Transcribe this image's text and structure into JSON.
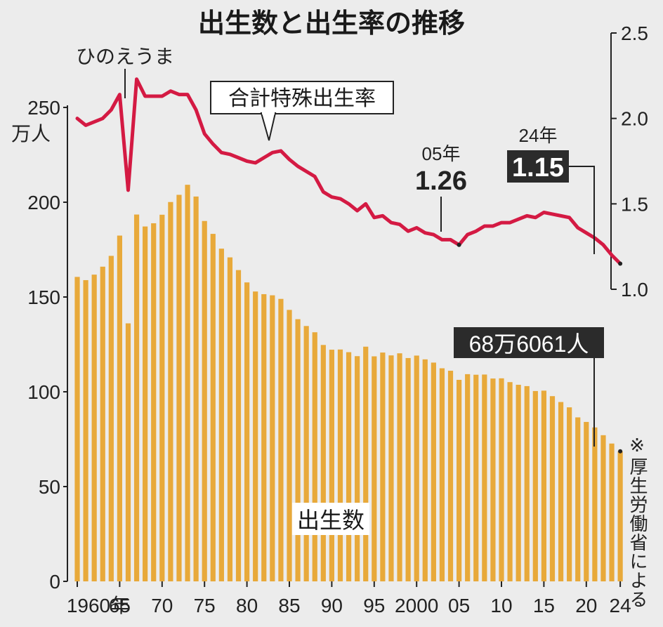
{
  "chart_data": {
    "type": "bar+line",
    "title": "出生数と出生率の推移",
    "left_axis_unit": "万人",
    "left_axis_ticks": [
      "0",
      "50",
      "100",
      "150",
      "200",
      "250"
    ],
    "right_axis_ticks": [
      "1.0",
      "1.5",
      "2.0",
      "2.5"
    ],
    "x_tick_labels": [
      "1960年",
      "65",
      "70",
      "75",
      "80",
      "85",
      "90",
      "95",
      "2000",
      "05",
      "10",
      "15",
      "20",
      "24"
    ],
    "years": [
      1960,
      1961,
      1962,
      1963,
      1964,
      1965,
      1966,
      1967,
      1968,
      1969,
      1970,
      1971,
      1972,
      1973,
      1974,
      1975,
      1976,
      1977,
      1978,
      1979,
      1980,
      1981,
      1982,
      1983,
      1984,
      1985,
      1986,
      1987,
      1988,
      1989,
      1990,
      1991,
      1992,
      1993,
      1994,
      1995,
      1996,
      1997,
      1998,
      1999,
      2000,
      2001,
      2002,
      2003,
      2004,
      2005,
      2006,
      2007,
      2008,
      2009,
      2010,
      2011,
      2012,
      2013,
      2014,
      2015,
      2016,
      2017,
      2018,
      2019,
      2020,
      2021,
      2022,
      2023,
      2024
    ],
    "series": [
      {
        "name": "出生数",
        "axis": "left",
        "style": "bar",
        "color": "#e8a93a",
        "values": [
          160.6,
          158.9,
          161.8,
          166.0,
          171.7,
          182.4,
          136.1,
          193.5,
          187.2,
          188.9,
          193.4,
          200.1,
          203.9,
          209.2,
          203.0,
          190.1,
          183.3,
          175.5,
          170.9,
          164.2,
          157.7,
          152.9,
          151.5,
          150.9,
          149.0,
          143.2,
          138.3,
          134.7,
          131.4,
          124.7,
          122.2,
          122.3,
          120.9,
          118.8,
          123.8,
          118.7,
          120.7,
          119.2,
          120.3,
          117.8,
          119.1,
          117.1,
          115.4,
          112.4,
          111.1,
          106.3,
          109.3,
          109.0,
          109.1,
          107.0,
          107.1,
          105.1,
          103.7,
          103.0,
          100.4,
          100.6,
          97.7,
          94.6,
          91.8,
          86.5,
          84.1,
          81.2,
          77.1,
          72.7,
          68.6061
        ]
      },
      {
        "name": "合計特殊出生率",
        "axis": "right",
        "style": "line",
        "color": "#d41a43",
        "values": [
          2.0,
          1.96,
          1.98,
          2.0,
          2.05,
          2.14,
          1.58,
          2.23,
          2.13,
          2.13,
          2.13,
          2.16,
          2.14,
          2.14,
          2.05,
          1.91,
          1.85,
          1.8,
          1.79,
          1.77,
          1.75,
          1.74,
          1.77,
          1.8,
          1.81,
          1.76,
          1.72,
          1.69,
          1.66,
          1.57,
          1.54,
          1.53,
          1.5,
          1.46,
          1.5,
          1.42,
          1.43,
          1.39,
          1.38,
          1.34,
          1.36,
          1.33,
          1.32,
          1.29,
          1.29,
          1.26,
          1.32,
          1.34,
          1.37,
          1.37,
          1.39,
          1.39,
          1.41,
          1.43,
          1.42,
          1.45,
          1.44,
          1.43,
          1.42,
          1.36,
          1.33,
          1.3,
          1.26,
          1.2,
          1.15
        ]
      }
    ],
    "annotations": {
      "hinoeuma": "ひのえうま",
      "rate_label": "合計特殊出生率",
      "births_label": "出生数",
      "y2005_year": "05年",
      "y2005_value": "1.26",
      "y2024_year": "24年",
      "y2024_value": "1.15",
      "y2024_births": "68万6061人"
    },
    "source_note": "※厚生労働省による"
  }
}
